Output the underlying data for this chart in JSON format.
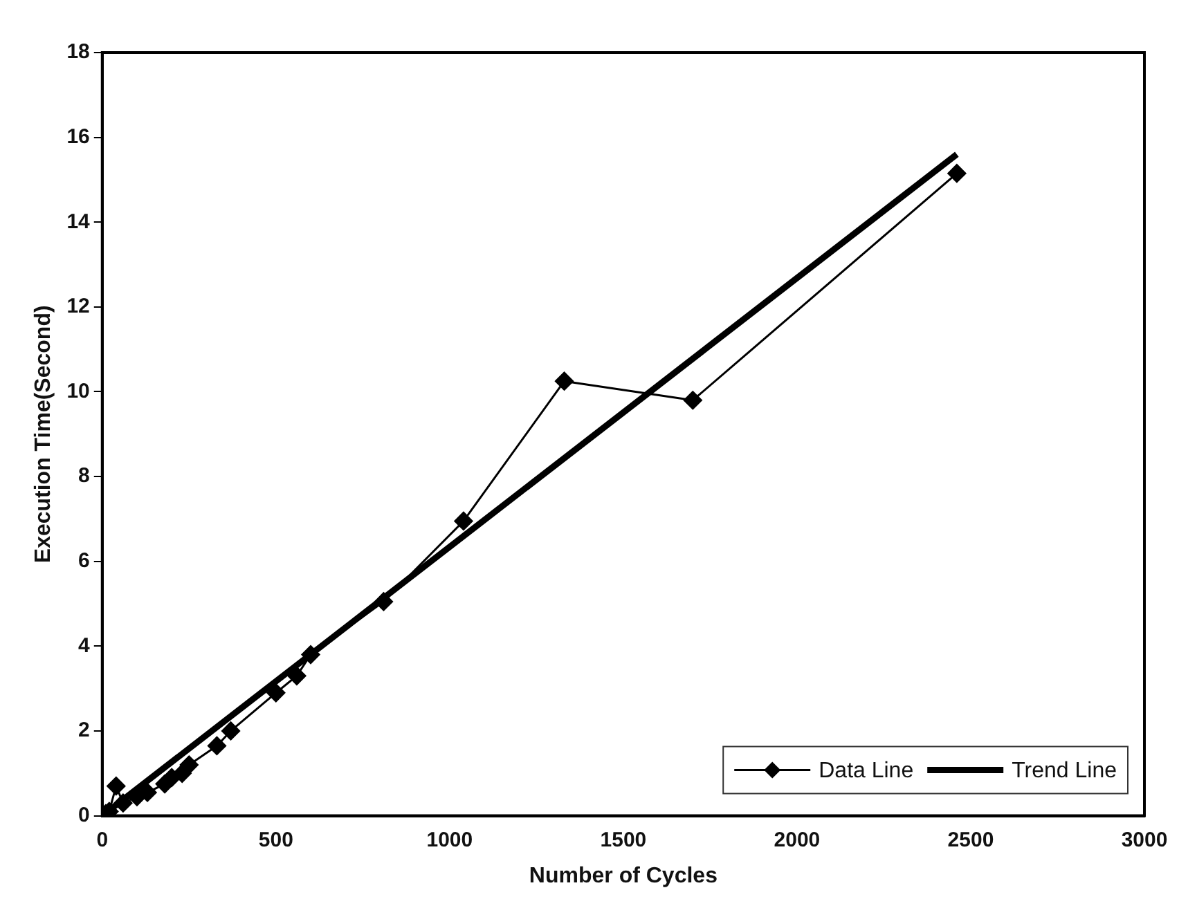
{
  "chart_data": {
    "type": "line",
    "xlabel": "Number of Cycles",
    "ylabel": "Execution Time(Second)",
    "xlim": [
      0,
      3000
    ],
    "xticks": [
      0,
      500,
      1000,
      1500,
      2000,
      2500,
      3000
    ],
    "ylim": [
      0,
      18
    ],
    "yticks": [
      0,
      2,
      4,
      6,
      8,
      10,
      12,
      14,
      16,
      18
    ],
    "grid": false,
    "legend": "bottom right",
    "series": [
      {
        "name": "Data Line",
        "color": "#000000",
        "marker": "diamond",
        "x": [
          10,
          20,
          40,
          60,
          100,
          130,
          180,
          200,
          230,
          250,
          330,
          370,
          500,
          560,
          600,
          810,
          1040,
          1330,
          1700,
          2460
        ],
        "values": [
          0.05,
          0.1,
          0.7,
          0.3,
          0.45,
          0.55,
          0.75,
          0.9,
          1.0,
          1.2,
          1.65,
          2.0,
          2.9,
          3.3,
          3.8,
          5.05,
          6.95,
          10.25,
          9.8,
          15.15
        ]
      },
      {
        "name": "Trend Line",
        "color": "#000000",
        "marker": "none",
        "x": [
          0,
          2460
        ],
        "values": [
          0,
          15.6
        ]
      }
    ]
  }
}
